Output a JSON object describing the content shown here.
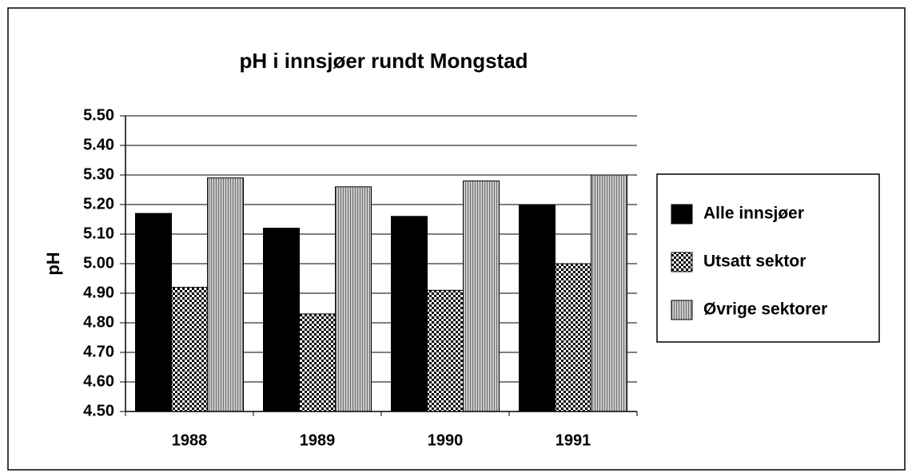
{
  "chart_data": {
    "type": "bar",
    "title": "pH i innsjøer rundt Mongstad",
    "ylabel": "pH",
    "categories": [
      "1988",
      "1989",
      "1990",
      "1991"
    ],
    "series": [
      {
        "name": "Alle innsjøer",
        "color": "#000000",
        "pattern": "solid",
        "values": [
          5.17,
          5.12,
          5.16,
          5.2
        ]
      },
      {
        "name": "Utsatt sektor",
        "color": "#000000",
        "pattern": "checker",
        "values": [
          4.92,
          4.83,
          4.91,
          5.0
        ]
      },
      {
        "name": "Øvrige sektorer",
        "color": "#9a9a9a",
        "pattern": "fine",
        "values": [
          5.29,
          5.26,
          5.28,
          5.3
        ]
      }
    ],
    "ylim": [
      4.5,
      5.5
    ],
    "yticks": [
      {
        "value": 4.5,
        "label": "4.50"
      },
      {
        "value": 4.6,
        "label": "4.60"
      },
      {
        "value": 4.7,
        "label": "4.70"
      },
      {
        "value": 4.8,
        "label": "4.80"
      },
      {
        "value": 4.9,
        "label": "4.90"
      },
      {
        "value": 5.0,
        "label": "5.00"
      },
      {
        "value": 5.1,
        "label": "5.10"
      },
      {
        "value": 5.2,
        "label": "5.20"
      },
      {
        "value": 5.3,
        "label": "5.30"
      },
      {
        "value": 5.4,
        "label": "5.40"
      },
      {
        "value": 5.5,
        "label": "5.50"
      }
    ],
    "grid": true,
    "legend": "right"
  }
}
